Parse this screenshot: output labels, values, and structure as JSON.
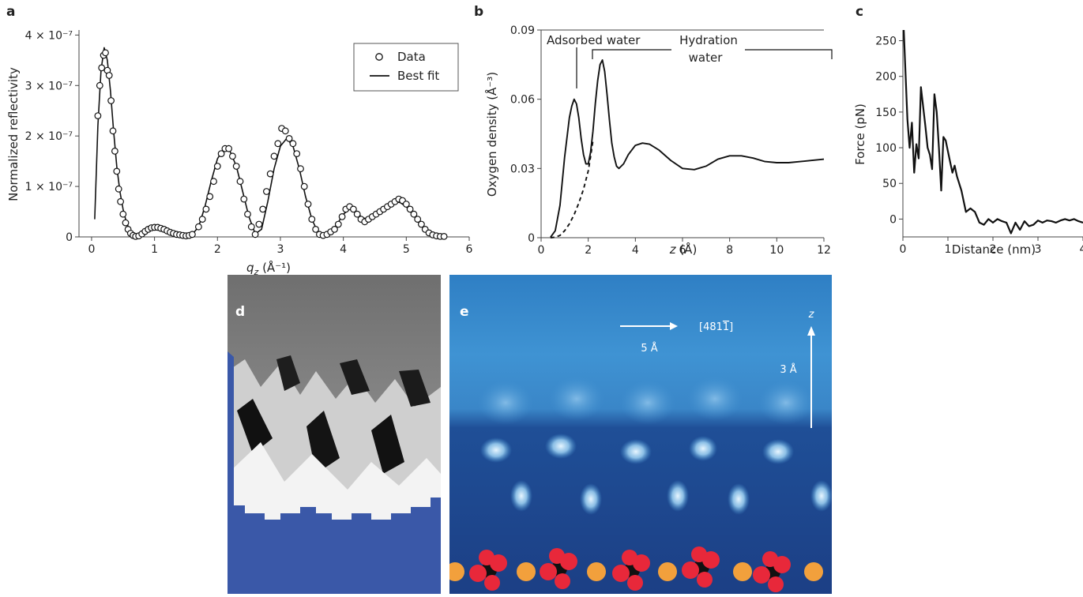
{
  "panels": {
    "a": {
      "letter": "a",
      "chart_data": {
        "type": "scatter",
        "xlabel_var": "q",
        "xlabel_sub": "z",
        "xlabel_unit": " (Å⁻¹)",
        "ylabel": "Normalized reflectivity",
        "xlim": [
          -0.2,
          6
        ],
        "ylim": [
          0,
          4.1e-07
        ],
        "xticks": [
          0,
          1,
          2,
          3,
          4,
          5,
          6
        ],
        "yticks": [
          {
            "v": 0,
            "label": "0"
          },
          {
            "v": 1e-07,
            "label": "1 × 10⁻⁷"
          },
          {
            "v": 2e-07,
            "label": "2 × 10⁻⁷"
          },
          {
            "v": 3e-07,
            "label": "3 × 10⁻⁷"
          },
          {
            "v": 4e-07,
            "label": "4 × 10⁻⁷"
          }
        ],
        "legend": {
          "position": "top-right",
          "entries": [
            "Data",
            "Best fit"
          ]
        },
        "series": [
          {
            "name": "Data",
            "x": [
              0.1,
              0.13,
              0.16,
              0.19,
              0.22,
              0.25,
              0.28,
              0.31,
              0.34,
              0.37,
              0.4,
              0.43,
              0.46,
              0.5,
              0.54,
              0.58,
              0.62,
              0.66,
              0.7,
              0.75,
              0.8,
              0.85,
              0.9,
              0.95,
              1.0,
              1.05,
              1.1,
              1.15,
              1.2,
              1.25,
              1.3,
              1.35,
              1.4,
              1.45,
              1.5,
              1.55,
              1.6,
              1.7,
              1.76,
              1.82,
              1.88,
              1.94,
              2.0,
              2.06,
              2.12,
              2.18,
              2.24,
              2.3,
              2.36,
              2.42,
              2.48,
              2.54,
              2.6,
              2.66,
              2.72,
              2.78,
              2.84,
              2.9,
              2.96,
              3.02,
              3.08,
              3.14,
              3.2,
              3.26,
              3.32,
              3.38,
              3.44,
              3.5,
              3.56,
              3.62,
              3.68,
              3.74,
              3.8,
              3.86,
              3.92,
              3.98,
              4.04,
              4.1,
              4.16,
              4.22,
              4.28,
              4.34,
              4.4,
              4.46,
              4.52,
              4.58,
              4.64,
              4.7,
              4.76,
              4.82,
              4.88,
              4.94,
              5.0,
              5.06,
              5.12,
              5.18,
              5.24,
              5.3,
              5.36,
              5.42,
              5.48,
              5.54,
              5.6
            ],
            "y": [
              2.4e-07,
              3e-07,
              3.35e-07,
              3.6e-07,
              3.65e-07,
              3.3e-07,
              3.2e-07,
              2.7e-07,
              2.1e-07,
              1.7e-07,
              1.3e-07,
              9.5e-08,
              7e-08,
              4.5e-08,
              2.8e-08,
              1.5e-08,
              7e-09,
              3e-09,
              1e-09,
              2e-09,
              6e-09,
              1.1e-08,
              1.5e-08,
              1.8e-08,
              1.9e-08,
              1.9e-08,
              1.7e-08,
              1.5e-08,
              1.2e-08,
              9e-09,
              7e-09,
              5e-09,
              4e-09,
              3e-09,
              2e-09,
              3e-09,
              5e-09,
              2e-08,
              3.5e-08,
              5.5e-08,
              8e-08,
              1.1e-07,
              1.4e-07,
              1.65e-07,
              1.75e-07,
              1.75e-07,
              1.6e-07,
              1.4e-07,
              1.1e-07,
              7.5e-08,
              4.5e-08,
              2e-08,
              5e-09,
              2.5e-08,
              5.5e-08,
              9e-08,
              1.25e-07,
              1.6e-07,
              1.85e-07,
              2.15e-07,
              2.1e-07,
              1.95e-07,
              1.85e-07,
              1.65e-07,
              1.35e-07,
              1e-07,
              6.5e-08,
              3.5e-08,
              1.5e-08,
              5e-09,
              3e-09,
              5e-09,
              1e-08,
              1.5e-08,
              2.5e-08,
              4e-08,
              5.5e-08,
              6e-08,
              5.5e-08,
              4.5e-08,
              3.5e-08,
              3e-08,
              3.5e-08,
              4e-08,
              4.5e-08,
              5e-08,
              5.5e-08,
              6e-08,
              6.5e-08,
              7e-08,
              7.5e-08,
              7.2e-08,
              6.5e-08,
              5.5e-08,
              4.5e-08,
              3.5e-08,
              2.5e-08,
              1.5e-08,
              8e-09,
              4e-09,
              2e-09,
              1e-09,
              1e-09
            ]
          },
          {
            "name": "Best fit",
            "x": [
              0.05,
              0.1,
              0.15,
              0.2,
              0.25,
              0.3,
              0.35,
              0.4,
              0.45,
              0.5,
              0.55,
              0.6,
              0.65,
              0.7,
              0.8,
              0.9,
              1.0,
              1.1,
              1.2,
              1.3,
              1.4,
              1.5,
              1.6,
              1.7,
              1.8,
              1.9,
              2.0,
              2.1,
              2.2,
              2.3,
              2.4,
              2.5,
              2.6,
              2.7,
              2.8,
              2.9,
              3.0,
              3.1,
              3.2,
              3.3,
              3.4,
              3.5,
              3.6,
              3.7,
              3.8,
              3.9,
              4.0,
              4.1,
              4.2,
              4.3,
              4.4,
              4.5,
              4.6,
              4.7,
              4.8,
              4.9,
              5.0,
              5.1,
              5.2,
              5.3,
              5.4,
              5.5,
              5.6
            ],
            "y": [
              3.5e-08,
              2.2e-07,
              3.3e-07,
              3.75e-07,
              3.5e-07,
              2.9e-07,
              2.1e-07,
              1.4e-07,
              9e-08,
              5.5e-08,
              3e-08,
              1.5e-08,
              6e-09,
              2e-09,
              5e-09,
              1.3e-08,
              1.8e-08,
              1.7e-08,
              1.2e-08,
              7e-09,
              3e-09,
              2e-09,
              5e-09,
              2e-08,
              6e-08,
              1.1e-07,
              1.55e-07,
              1.75e-07,
              1.7e-07,
              1.4e-07,
              9e-08,
              4e-08,
              6e-09,
              1.5e-08,
              7e-08,
              1.35e-07,
              1.8e-07,
              1.95e-07,
              1.8e-07,
              1.35e-07,
              8e-08,
              3.5e-08,
              8e-09,
              2e-09,
              1e-08,
              2.5e-08,
              4.5e-08,
              5.5e-08,
              5e-08,
              3.8e-08,
              3.5e-08,
              4.5e-08,
              5.5e-08,
              6.3e-08,
              7e-08,
              6.8e-08,
              6e-08,
              4.5e-08,
              3e-08,
              1.5e-08,
              6e-09,
              2e-09,
              1e-09
            ]
          }
        ]
      }
    },
    "b": {
      "letter": "b",
      "chart_data": {
        "type": "line",
        "xlabel_var": "z",
        "xlabel_unit": " (Å)",
        "ylabel": "Oxygen density (Å⁻³)",
        "xlim": [
          0,
          12
        ],
        "ylim": [
          0,
          0.09
        ],
        "xticks": [
          0,
          2,
          4,
          6,
          8,
          10,
          12
        ],
        "yticks": [
          {
            "v": 0,
            "label": "0"
          },
          {
            "v": 0.03,
            "label": "0.03"
          },
          {
            "v": 0.06,
            "label": "0.06"
          },
          {
            "v": 0.09,
            "label": "0.09"
          }
        ],
        "annotations": {
          "adsorbed": "Adsorbed water",
          "hydration_line1": "Hydration",
          "hydration_line2": "water"
        },
        "series": [
          {
            "style": "solid",
            "x": [
              0.4,
              0.6,
              0.8,
              1.0,
              1.2,
              1.3,
              1.4,
              1.5,
              1.6,
              1.7,
              1.8,
              1.9,
              2.0,
              2.1,
              2.2,
              2.3,
              2.4,
              2.5,
              2.6,
              2.7,
              2.8,
              2.9,
              3.0,
              3.1,
              3.2,
              3.3,
              3.5,
              3.7,
              4.0,
              4.3,
              4.6,
              5.0,
              5.5,
              6.0,
              6.5,
              7.0,
              7.5,
              8.0,
              8.5,
              9.0,
              9.5,
              10.0,
              10.5,
              11.0,
              11.5,
              12.0
            ],
            "y": [
              0.0002,
              0.003,
              0.014,
              0.035,
              0.052,
              0.057,
              0.06,
              0.058,
              0.052,
              0.043,
              0.036,
              0.032,
              0.032,
              0.037,
              0.046,
              0.058,
              0.068,
              0.075,
              0.077,
              0.072,
              0.062,
              0.051,
              0.041,
              0.035,
              0.031,
              0.03,
              0.032,
              0.036,
              0.04,
              0.041,
              0.0405,
              0.038,
              0.0335,
              0.03,
              0.0295,
              0.031,
              0.034,
              0.0355,
              0.0355,
              0.0345,
              0.033,
              0.0325,
              0.0325,
              0.033,
              0.0335,
              0.034
            ]
          },
          {
            "style": "dashed",
            "x": [
              0.4,
              0.6,
              0.8,
              1.0,
              1.2,
              1.4,
              1.6,
              1.8,
              2.0,
              2.1,
              2.2
            ],
            "y": [
              0,
              0.0002,
              0.001,
              0.003,
              0.006,
              0.01,
              0.015,
              0.021,
              0.029,
              0.035,
              0.042
            ]
          }
        ]
      }
    },
    "c": {
      "letter": "c",
      "chart_data": {
        "type": "line",
        "xlabel": "Distance (nm)",
        "ylabel": "Force (pN)",
        "xlim": [
          0,
          4
        ],
        "ylim": [
          -25,
          265
        ],
        "xticks": [
          0,
          1,
          2,
          3,
          4
        ],
        "yticks": [
          0,
          50,
          100,
          150,
          200,
          250
        ],
        "series": [
          {
            "x": [
              0.02,
              0.1,
              0.15,
              0.2,
              0.25,
              0.3,
              0.35,
              0.4,
              0.5,
              0.55,
              0.6,
              0.65,
              0.7,
              0.75,
              0.8,
              0.85,
              0.9,
              0.95,
              1.0,
              1.05,
              1.1,
              1.15,
              1.2,
              1.3,
              1.4,
              1.5,
              1.6,
              1.7,
              1.8,
              1.9,
              2.0,
              2.1,
              2.2,
              2.3,
              2.4,
              2.5,
              2.6,
              2.7,
              2.8,
              2.9,
              3.0,
              3.1,
              3.2,
              3.3,
              3.4,
              3.5,
              3.6,
              3.7,
              3.8,
              3.9,
              4.0
            ],
            "y": [
              265,
              140,
              100,
              135,
              65,
              105,
              85,
              185,
              130,
              100,
              90,
              70,
              175,
              150,
              100,
              40,
              115,
              110,
              95,
              80,
              65,
              75,
              60,
              40,
              10,
              15,
              10,
              -5,
              -8,
              0,
              -5,
              0,
              -3,
              -5,
              -20,
              -5,
              -15,
              -3,
              -10,
              -8,
              -2,
              -5,
              -2,
              -3,
              -5,
              -2,
              0,
              -2,
              0,
              -3,
              -5
            ]
          }
        ]
      }
    }
  },
  "images": {
    "d": {
      "letter": "d"
    },
    "e": {
      "letter": "e",
      "direction_label": "[481",
      "direction_bar_digit": "1",
      "direction_close": "]",
      "scale_x": "5 Å",
      "axis_z": "z",
      "scale_z": "3 Å"
    }
  },
  "colors": {
    "line": "#111111",
    "axis": "#444444",
    "blue_dark": "#1d3f84",
    "blue_mid": "#2e70b8",
    "oxygen": "#e8283a",
    "metal": "#f2a03c",
    "carbon": "#111111"
  }
}
